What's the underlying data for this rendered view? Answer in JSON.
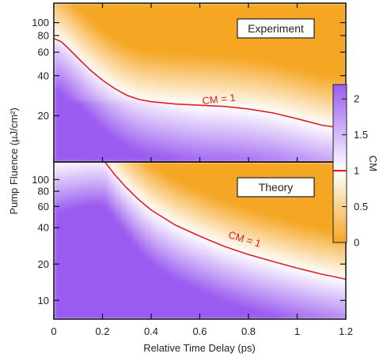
{
  "chart_data": {
    "type": "heatmap",
    "xlabel": "Relative Time Delay (ps)",
    "ylabel": "Pump Fluence (µJ/cm²)",
    "x_ticks": [
      0,
      0.2,
      0.4,
      0.6,
      0.8,
      1,
      1.2
    ],
    "x_tick_labels": [
      "0",
      "0.2",
      "0.4",
      "0.6",
      "0.8",
      "1",
      "1.2"
    ],
    "xlim": [
      0,
      1.2
    ],
    "y_scale": "log",
    "panels": [
      {
        "name": "Experiment",
        "ylim": [
          9,
          140
        ],
        "y_ticks": [
          20,
          40,
          60,
          80,
          100
        ],
        "y_tick_labels": [
          "20",
          "40",
          "60",
          "80",
          "100"
        ],
        "contour_label": "CM = 1",
        "contour": {
          "x": [
            0,
            0.03,
            0.06,
            0.1,
            0.15,
            0.2,
            0.25,
            0.3,
            0.35,
            0.4,
            0.5,
            0.6,
            0.7,
            0.8,
            0.9,
            1.0,
            1.1,
            1.2
          ],
          "y": [
            76,
            72,
            64,
            54,
            44,
            37,
            32,
            28.5,
            26.5,
            25.5,
            24.5,
            24,
            23.5,
            22.5,
            21,
            19,
            17,
            16
          ]
        }
      },
      {
        "name": "Theory",
        "ylim": [
          7,
          140
        ],
        "y_ticks": [
          10,
          20,
          40,
          60,
          80,
          100
        ],
        "y_tick_labels": [
          "10",
          "20",
          "40",
          "60",
          "80",
          "100"
        ],
        "contour_label": "CM = 1",
        "contour": {
          "x": [
            0.21,
            0.25,
            0.3,
            0.35,
            0.4,
            0.5,
            0.6,
            0.7,
            0.8,
            0.9,
            1.0,
            1.1,
            1.2
          ],
          "y": [
            140,
            110,
            85,
            68,
            56,
            42,
            34,
            28,
            24,
            21,
            18.5,
            16.5,
            15
          ]
        }
      }
    ],
    "colorbar": {
      "label": "CM",
      "range": [
        0,
        2.2
      ],
      "ticks": [
        0,
        0.5,
        1,
        1.5,
        2
      ],
      "tick_labels": [
        "0",
        "0.5",
        "1",
        "1.5",
        "2"
      ],
      "marker_value": 1,
      "colors": {
        "low": "#f5a623",
        "mid": "#ffffff",
        "high": "#9a5cf0"
      }
    },
    "contour_color": "#e02020"
  }
}
